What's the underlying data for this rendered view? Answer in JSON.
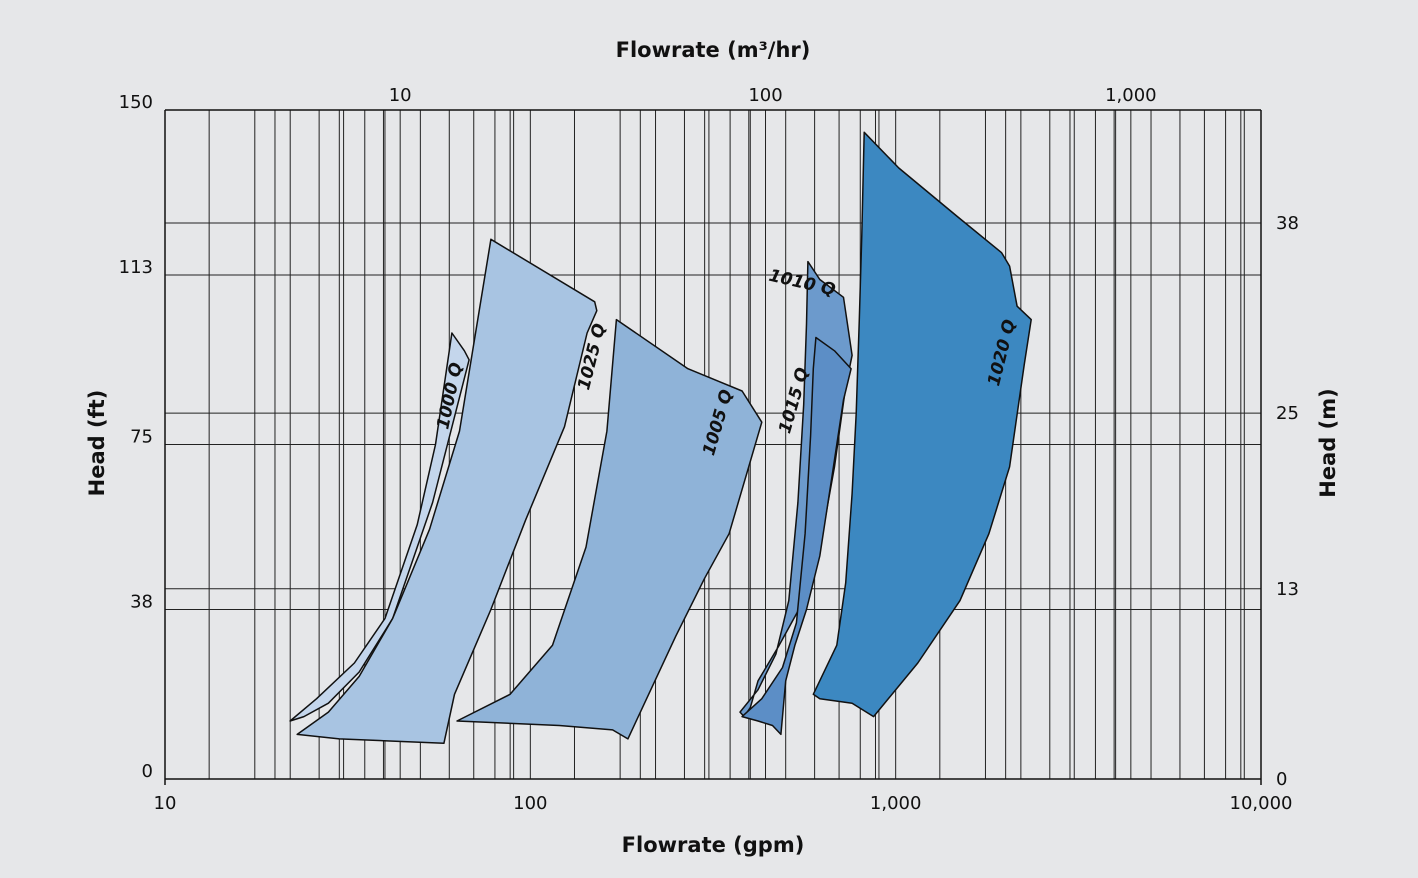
{
  "chart_data": {
    "type": "area",
    "title": "",
    "xlabel": "Flowrate (gpm)",
    "x2label": "Flowrate (m³/hr)",
    "ylabel": "Head (ft)",
    "y2label": "Head (m)",
    "x_scale": "log",
    "xlim": [
      10,
      10000
    ],
    "ylim": [
      0,
      150
    ],
    "x_ticks": [
      10,
      100,
      1000,
      10000
    ],
    "x_tick_labels": [
      "10",
      "100",
      "1,000",
      "10,000"
    ],
    "x2_ticks": [
      10,
      100,
      1000
    ],
    "x2_tick_labels": [
      "10",
      "100",
      "1,000"
    ],
    "y_ticks": [
      0,
      38,
      75,
      113,
      150
    ],
    "y_tick_labels": [
      "0",
      "38",
      "75",
      "113",
      "150"
    ],
    "y2_ticks": [
      0,
      13,
      25,
      38
    ],
    "y2_tick_labels": [
      "0",
      "13",
      "25",
      "38"
    ],
    "grid": true,
    "series": [
      {
        "name": "1000 Q",
        "color": "#c4d6ec",
        "outline": [
          [
            22,
            13
          ],
          [
            26,
            18
          ],
          [
            33,
            26
          ],
          [
            40,
            36
          ],
          [
            49,
            57
          ],
          [
            55,
            75
          ],
          [
            61,
            100
          ],
          [
            66,
            96
          ],
          [
            68,
            94
          ],
          [
            54,
            62
          ],
          [
            42,
            36
          ],
          [
            34,
            24
          ],
          [
            28,
            17
          ],
          [
            24,
            14
          ]
        ]
      },
      {
        "name": "1025 Q",
        "color": "#a8c4e2",
        "outline": [
          [
            23,
            10
          ],
          [
            28,
            15
          ],
          [
            34,
            23
          ],
          [
            42,
            36
          ],
          [
            53,
            56
          ],
          [
            64,
            78
          ],
          [
            78,
            121
          ],
          [
            150,
            107
          ],
          [
            152,
            105
          ],
          [
            143,
            100
          ],
          [
            124,
            79
          ],
          [
            97,
            58
          ],
          [
            78,
            38
          ],
          [
            62,
            19
          ],
          [
            58,
            8
          ],
          [
            42,
            8.5
          ],
          [
            30,
            9
          ]
        ]
      },
      {
        "name": "1005 Q",
        "color": "#8fb3d8",
        "outline": [
          [
            63,
            13
          ],
          [
            88,
            19
          ],
          [
            115,
            30
          ],
          [
            142,
            52
          ],
          [
            162,
            78
          ],
          [
            172,
            103
          ],
          [
            270,
            92
          ],
          [
            380,
            87
          ],
          [
            430,
            80
          ],
          [
            350,
            55
          ],
          [
            300,
            45
          ],
          [
            250,
            32
          ],
          [
            185,
            9
          ],
          [
            168,
            11
          ],
          [
            120,
            12
          ]
        ]
      },
      {
        "name": "1010 Q",
        "color": "#6c9acc",
        "outline": [
          [
            375,
            15
          ],
          [
            420,
            20
          ],
          [
            470,
            28
          ],
          [
            510,
            40
          ],
          [
            540,
            62
          ],
          [
            560,
            84
          ],
          [
            570,
            102
          ],
          [
            575,
            116
          ],
          [
            620,
            112
          ],
          [
            720,
            108
          ],
          [
            760,
            95
          ],
          [
            730,
            88
          ],
          [
            680,
            70
          ],
          [
            630,
            55
          ],
          [
            560,
            40
          ],
          [
            480,
            30
          ],
          [
            420,
            22
          ],
          [
            400,
            16
          ],
          [
            385,
            14
          ]
        ]
      },
      {
        "name": "1015 Q",
        "color": "#5c8ec6",
        "outline": [
          [
            380,
            14
          ],
          [
            430,
            18
          ],
          [
            490,
            25
          ],
          [
            535,
            35
          ],
          [
            565,
            55
          ],
          [
            585,
            77
          ],
          [
            595,
            92
          ],
          [
            605,
            99
          ],
          [
            680,
            96
          ],
          [
            755,
            92
          ],
          [
            720,
            85
          ],
          [
            670,
            68
          ],
          [
            620,
            50
          ],
          [
            570,
            38
          ],
          [
            530,
            30
          ],
          [
            500,
            22
          ],
          [
            485,
            10
          ],
          [
            460,
            12
          ],
          [
            420,
            13
          ]
        ]
      },
      {
        "name": "1020 Q",
        "color": "#3c88c1",
        "outline": [
          [
            595,
            19
          ],
          [
            690,
            30
          ],
          [
            730,
            44
          ],
          [
            760,
            64
          ],
          [
            780,
            82
          ],
          [
            795,
            103
          ],
          [
            808,
            122
          ],
          [
            820,
            145
          ],
          [
            1020,
            137
          ],
          [
            1480,
            126
          ],
          [
            1950,
            118
          ],
          [
            2050,
            115
          ],
          [
            2150,
            106
          ],
          [
            2350,
            103
          ],
          [
            2250,
            93
          ],
          [
            2050,
            70
          ],
          [
            1800,
            55
          ],
          [
            1500,
            40
          ],
          [
            1150,
            26
          ],
          [
            870,
            14
          ],
          [
            760,
            17
          ],
          [
            620,
            18
          ]
        ]
      }
    ]
  }
}
